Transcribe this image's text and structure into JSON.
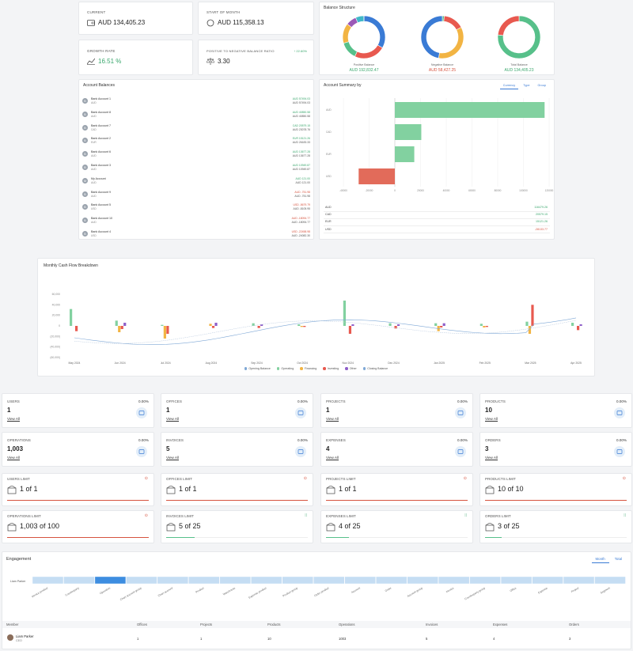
{
  "summary": {
    "current": {
      "label": "CURRENT",
      "value": "AUD 134,405.23"
    },
    "start_of_month": {
      "label": "START OF MONTH",
      "value": "AUD 115,358.13"
    },
    "growth_rate": {
      "label": "GROWTH RATE",
      "value": "16.51 %"
    },
    "pos_neg_ratio": {
      "label": "POSITIVE TO NEGATIVE BALANCE RATIO",
      "value": "3.30",
      "delta": "↑ 22.60%"
    }
  },
  "balance_structure": {
    "title": "Balance Structure",
    "positive": {
      "label": "Positive Balance",
      "value": "AUD 192,832.47"
    },
    "negative": {
      "label": "Negative Balance",
      "value": "AUD 58,427.25"
    },
    "total": {
      "label": "Total Balance",
      "value": "AUD 134,405.23"
    }
  },
  "account_balances": {
    "title": "Account Balances",
    "items": [
      {
        "initial": "B",
        "name": "Bank Account 1",
        "cur": "AUD",
        "v1": "AUD 57494.03",
        "v2": "AUD 57494.03",
        "pos": true
      },
      {
        "initial": "B",
        "name": "Bank Account 8",
        "cur": "AUD",
        "v1": "AUD 40850.58",
        "v2": "AUD 40850.58",
        "pos": true
      },
      {
        "initial": "B",
        "name": "Bank Account 7",
        "cur": "CAD",
        "v1": "CAD 20579.15",
        "v2": "AUD 23078.76",
        "pos": true
      },
      {
        "initial": "B",
        "name": "Bank Account 2",
        "cur": "EUR",
        "v1": "EUR 15121.26",
        "v2": "AUD 26183.33",
        "pos": true
      },
      {
        "initial": "B",
        "name": "Bank Account 6",
        "cur": "AUD",
        "v1": "AUD 13677.28",
        "v2": "AUD 13677.28",
        "pos": true
      },
      {
        "initial": "B",
        "name": "Bank Account 3",
        "cur": "AUD",
        "v1": "AUD 10949.87",
        "v2": "AUD 10949.87",
        "pos": true
      },
      {
        "initial": "M",
        "name": "My Account",
        "cur": "AUD",
        "v1": "AUD 121.00",
        "v2": "AUD 121.00",
        "pos": true
      },
      {
        "initial": "B",
        "name": "Bank Account 9",
        "cur": "AUD",
        "v1": "AUD -751.98",
        "v2": "AUD -751.98",
        "pos": false
      },
      {
        "initial": "B",
        "name": "Bank Account 5",
        "cur": "USD",
        "v1": "USD -5679.79",
        "v2": "AUD -8105.95",
        "pos": false
      },
      {
        "initial": "B",
        "name": "Bank Account 10",
        "cur": "AUD",
        "v1": "AUD -18094.77",
        "v2": "AUD -18094.77",
        "pos": false
      },
      {
        "initial": "B",
        "name": "Bank Account 4",
        "cur": "USD",
        "v1": "USD -22458.98",
        "v2": "AUD -24082.30",
        "pos": false
      }
    ]
  },
  "account_summary": {
    "title": "Account Summary by",
    "tabs": [
      "Currency",
      "Type",
      "Group"
    ],
    "totals": [
      {
        "cur": "AUD",
        "value": "116479.26",
        "pos": true
      },
      {
        "cur": "CAD",
        "value": "20579.15",
        "pos": true
      },
      {
        "cur": "EUR",
        "value": "15121.26",
        "pos": true
      },
      {
        "cur": "USD",
        "value": "-28133.77",
        "pos": false
      }
    ]
  },
  "cash_flow": {
    "title": "Monthly Cash Flow Breakdown",
    "legend": [
      "Opening Balance",
      "Operating",
      "Financing",
      "Investing",
      "Other",
      "Closing Balance"
    ]
  },
  "stats": [
    {
      "label": "USERS",
      "value": "1",
      "pct": "0.00%",
      "link": "View All",
      "icon": "users-icon"
    },
    {
      "label": "OFFICES",
      "value": "1",
      "pct": "0.00%",
      "link": "View All",
      "icon": "home-icon"
    },
    {
      "label": "PROJECTS",
      "value": "1",
      "pct": "0.00%",
      "link": "View All",
      "icon": "briefcase-icon"
    },
    {
      "label": "PRODUCTS",
      "value": "10",
      "pct": "0.00%",
      "link": "View All",
      "icon": "bag-icon"
    },
    {
      "label": "OPERATIONS",
      "value": "1,003",
      "pct": "0.00%",
      "link": "View All",
      "icon": "cash-icon"
    },
    {
      "label": "INVOICES",
      "value": "5",
      "pct": "0.00%",
      "link": "View All",
      "icon": "invoice-icon"
    },
    {
      "label": "EXPENSES",
      "value": "4",
      "pct": "0.00%",
      "link": "View All",
      "icon": "cart-icon"
    },
    {
      "label": "ORDERS",
      "value": "3",
      "pct": "0.00%",
      "link": "View All",
      "icon": "basket-icon"
    }
  ],
  "limits": [
    {
      "label": "USERS LIMIT",
      "value": "1 of 1",
      "fill": 1.0,
      "over": true
    },
    {
      "label": "OFFICES LIMIT",
      "value": "1 of 1",
      "fill": 1.0,
      "over": true
    },
    {
      "label": "PROJECTS LIMIT",
      "value": "1 of 1",
      "fill": 1.0,
      "over": true
    },
    {
      "label": "PRODUCTS LIMIT",
      "value": "10 of 10",
      "fill": 1.0,
      "over": true
    },
    {
      "label": "OPERATIONS LIMIT",
      "value": "1,003 of 100",
      "fill": 1.0,
      "over": true
    },
    {
      "label": "INVOICES LIMIT",
      "value": "5 of 25",
      "fill": 0.2,
      "over": false
    },
    {
      "label": "EXPENSES LIMIT",
      "value": "4 of 25",
      "fill": 0.16,
      "over": false
    },
    {
      "label": "ORDERS LIMIT",
      "value": "3 of 25",
      "fill": 0.12,
      "over": false
    }
  ],
  "engagement": {
    "title": "Engagement",
    "tabs": [
      "Month",
      "Total"
    ],
    "row_label": "Liam Parker",
    "columns": [
      "Invoice product",
      "Counterparty",
      "Operation",
      "Chart account group",
      "Chart account",
      "Product",
      "Warehouse",
      "Expense product",
      "Product group",
      "Order product",
      "Account",
      "Order",
      "Account group",
      "Invoice",
      "Counterparty group",
      "Office",
      "Expense",
      "Project",
      "Segment"
    ],
    "table_headers": [
      "Member",
      "Offices",
      "Projects",
      "Products",
      "Operations",
      "Invoices",
      "Expenses",
      "Orders"
    ],
    "member": {
      "name": "Liam Parker",
      "role": "CEO",
      "offices": "1",
      "projects": "1",
      "products": "10",
      "operations": "1003",
      "invoices": "5",
      "expenses": "4",
      "orders": "3"
    }
  },
  "chart_data": [
    {
      "type": "pie",
      "title": "Balance Structure",
      "series": [
        {
          "name": "Positive Balance",
          "values": [
            57494.03,
            40850.58,
            23078.76,
            26183.33,
            13677.28,
            10949.87,
            121.0
          ]
        },
        {
          "name": "Negative Balance",
          "values": [
            751.98,
            8105.95,
            18094.77,
            24082.3
          ]
        },
        {
          "name": "Total Balance",
          "values": [
            192832.47,
            58427.25
          ]
        }
      ]
    },
    {
      "type": "bar",
      "title": "Account Summary by",
      "orientation": "horizontal",
      "categories": [
        "AUD",
        "CAD",
        "EUR",
        "USD"
      ],
      "values": [
        116479.26,
        20579.15,
        15121.26,
        -28133.77
      ],
      "xlim": [
        -40000,
        120000
      ],
      "xticks": [
        "-40000",
        "-20000",
        "0",
        "20000",
        "40000",
        "60000",
        "80000",
        "100000",
        "120000"
      ]
    },
    {
      "type": "bar",
      "title": "Monthly Cash Flow Breakdown",
      "categories": [
        "May 2024",
        "Jun 2024",
        "Jul 2024",
        "Aug 2024",
        "Sep 2024",
        "Oct 2024",
        "Nov 2024",
        "Dec 2024",
        "Jan 2025",
        "Feb 2025",
        "Mar 2025",
        "Apr 2025"
      ],
      "yticks": [
        "60,000",
        "40,000",
        "20,000",
        "0",
        "(20,000)",
        "(40,000)",
        "(60,000)"
      ],
      "ylim": [
        -60000,
        60000
      ],
      "series": [
        {
          "name": "Operating",
          "values": [
            32000,
            10000,
            2000,
            0,
            5000,
            3000,
            48000,
            5000,
            5000,
            4000,
            8000,
            6000
          ]
        },
        {
          "name": "Financing",
          "values": [
            0,
            -12000,
            -24000,
            4000,
            0,
            -2000,
            0,
            0,
            -10000,
            -3000,
            -15000,
            0
          ]
        },
        {
          "name": "Investing",
          "values": [
            -10000,
            -6000,
            -15000,
            -4000,
            -4000,
            -2000,
            -15000,
            -5000,
            -3000,
            -2000,
            40000,
            -8000
          ]
        },
        {
          "name": "Other",
          "values": [
            0,
            6000,
            0,
            6000,
            3000,
            0,
            3000,
            3000,
            5000,
            0,
            0,
            3000
          ]
        }
      ]
    }
  ]
}
